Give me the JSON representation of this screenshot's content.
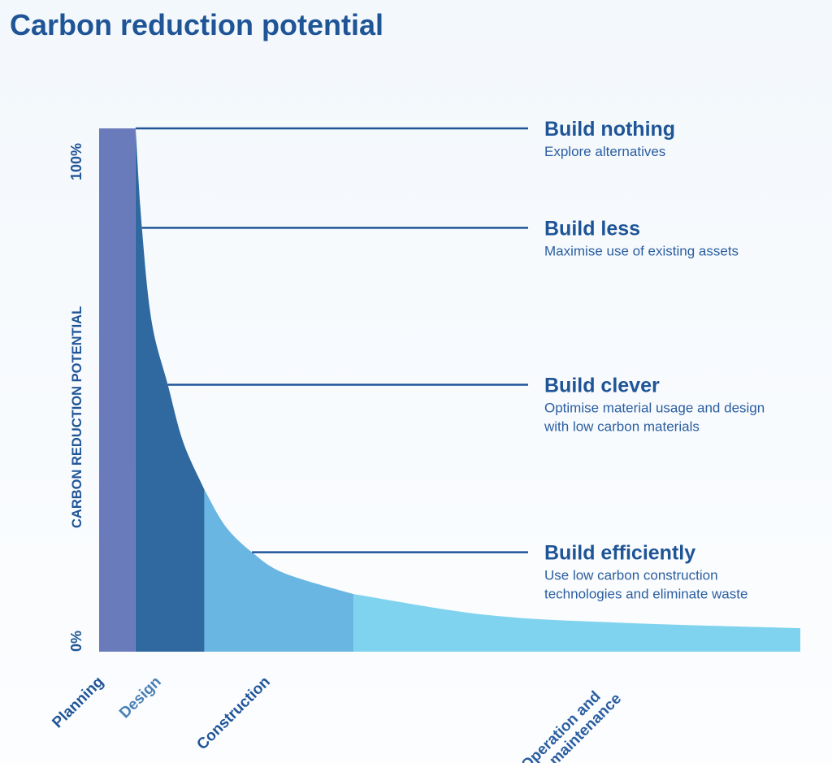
{
  "title": "Carbon reduction potential",
  "chart_data": {
    "type": "area",
    "title": "Carbon reduction potential",
    "ylabel": "CARBON REDUCTION POTENTIAL",
    "yticks": [
      "0%",
      "100%"
    ],
    "ylim": [
      0,
      100
    ],
    "xlim": [
      0,
      100
    ],
    "phases": [
      {
        "label": "Planning",
        "start": 0,
        "end": 5.2,
        "color": "#6a7bbb",
        "label_color": "#1f5597"
      },
      {
        "label": "Design",
        "start": 5.2,
        "end": 15,
        "color": "#2f69a0",
        "label_color": "#4a7fb5"
      },
      {
        "label": "Construction",
        "start": 15,
        "end": 36.3,
        "color": "#6ab6e3",
        "label_color": "#1f5597"
      },
      {
        "label": "Operation and maintenance",
        "label_lines": [
          "Operation and",
          "maintenance"
        ],
        "start": 36.3,
        "end": 100,
        "color": "#80d3ee",
        "label_color": "#2a5ea0"
      }
    ],
    "curve": {
      "x": [
        5.2,
        6.1,
        7.5,
        9.8,
        12,
        15,
        18,
        21.8,
        26.4,
        36.3,
        55.4,
        75,
        100
      ],
      "y": [
        100,
        81,
        63,
        51,
        40,
        31,
        24,
        19,
        15,
        11,
        7,
        5.5,
        4.5
      ]
    },
    "annotations": [
      {
        "level": 100,
        "x": 5.2,
        "title": "Build nothing",
        "lines": [
          "Explore alternatives"
        ]
      },
      {
        "level": 81,
        "x": 6.1,
        "title": "Build less",
        "lines": [
          "Maximise use of existing assets"
        ]
      },
      {
        "level": 51,
        "x": 9.8,
        "title": "Build clever",
        "lines": [
          "Optimise material usage and design",
          "with low carbon materials"
        ]
      },
      {
        "level": 19,
        "x": 21.8,
        "title": "Build efficiently",
        "lines": [
          "Use low carbon construction",
          "technologies and eliminate waste"
        ]
      }
    ],
    "line_color": "#1f5597"
  }
}
